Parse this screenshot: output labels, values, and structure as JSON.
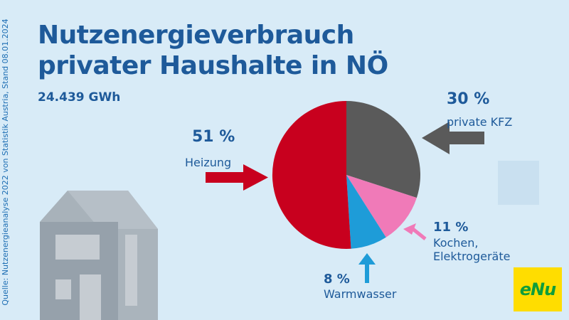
{
  "title_line1": "Nutzenergieverbrauch",
  "title_line2": "privater Haushalte in NÖ",
  "total": "24.439 GWh",
  "source": "Quelle: Nutzenergieanalyse 2022 von Statistik Austria, Stand 08.01.2024",
  "logo_text": "eNu",
  "labels": {
    "heizung_pct": "51 %",
    "heizung": "Heizung",
    "kfz_pct": "30 %",
    "kfz": "private KFZ",
    "kochen_pct": "11 %",
    "kochen_line1": "Kochen,",
    "kochen_line2": "Elektrogeräte",
    "warm_pct": "8 %",
    "warm": "Warmwasser"
  },
  "colors": {
    "background": "#d8ebf7",
    "title": "#1e5a9a",
    "heizung": "#c8001e",
    "kfz": "#5a5a5a",
    "kochen": "#f07ab8",
    "warmwasser": "#1e9cd8",
    "logo_bg": "#ffdd00",
    "logo_text": "#0f9d3a"
  },
  "chart_data": {
    "type": "pie",
    "title": "Nutzenergieverbrauch privater Haushalte in NÖ",
    "total_label": "24.439 GWh",
    "unit": "%",
    "slices": [
      {
        "name": "private KFZ",
        "value": 30,
        "color": "#5a5a5a"
      },
      {
        "name": "Kochen, Elektrogeräte",
        "value": 11,
        "color": "#f07ab8"
      },
      {
        "name": "Warmwasser",
        "value": 8,
        "color": "#1e9cd8"
      },
      {
        "name": "Heizung",
        "value": 51,
        "color": "#c8001e"
      }
    ]
  }
}
